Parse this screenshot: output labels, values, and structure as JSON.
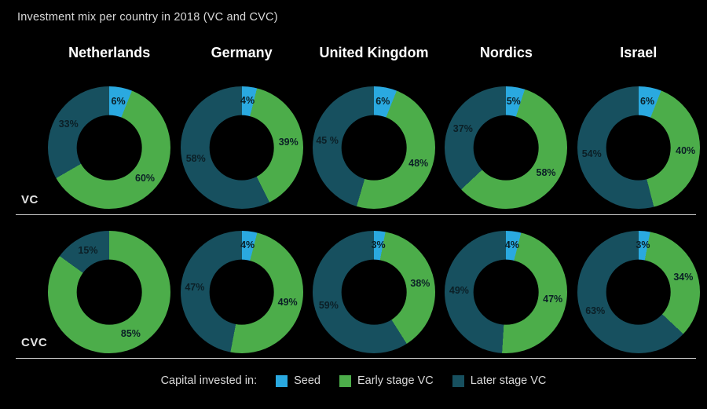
{
  "title": "Investment mix per country in 2018 (VC and CVC)",
  "colors": {
    "seed": "#2aa9e0",
    "early": "#4cad4a",
    "later": "#17505f",
    "background": "#000000",
    "segment_label": "#0b1f26",
    "text": "#d9d9d9",
    "line": "#c9c9c9"
  },
  "legend": {
    "prefix": "Capital invested in:",
    "items": [
      {
        "label": "Seed",
        "color_key": "seed"
      },
      {
        "label": "Early stage VC",
        "color_key": "early"
      },
      {
        "label": "Later stage VC",
        "color_key": "later"
      }
    ]
  },
  "chart_data": {
    "type": "pie",
    "subtype": "donut-grid",
    "title": "Investment mix per country in 2018 (VC and CVC)",
    "legend_position": "bottom",
    "legend": [
      "Seed",
      "Early stage VC",
      "Later stage VC"
    ],
    "columns": [
      "Netherlands",
      "Germany",
      "United Kingdom",
      "Nordics",
      "Israel"
    ],
    "rows": [
      {
        "label": "VC",
        "donuts": [
          {
            "country": "Netherlands",
            "segments": [
              {
                "name": "Seed",
                "color_key": "seed",
                "value": 6,
                "display": "6%"
              },
              {
                "name": "Early stage VC",
                "color_key": "early",
                "value": 60,
                "display": "60%"
              },
              {
                "name": "Later stage VC",
                "color_key": "later",
                "value": 33,
                "display": "33%"
              }
            ]
          },
          {
            "country": "Germany",
            "segments": [
              {
                "name": "Seed",
                "color_key": "seed",
                "value": 4,
                "display": "4%"
              },
              {
                "name": "Early stage VC",
                "color_key": "early",
                "value": 39,
                "display": "39%"
              },
              {
                "name": "Later stage VC",
                "color_key": "later",
                "value": 58,
                "display": "58%"
              }
            ]
          },
          {
            "country": "United Kingdom",
            "segments": [
              {
                "name": "Seed",
                "color_key": "seed",
                "value": 6,
                "display": "6%"
              },
              {
                "name": "Early stage VC",
                "color_key": "early",
                "value": 48,
                "display": "48%"
              },
              {
                "name": "Later stage VC",
                "color_key": "later",
                "value": 45,
                "display": "45 %"
              }
            ]
          },
          {
            "country": "Nordics",
            "segments": [
              {
                "name": "Seed",
                "color_key": "seed",
                "value": 5,
                "display": "5%"
              },
              {
                "name": "Early stage VC",
                "color_key": "early",
                "value": 58,
                "display": "58%"
              },
              {
                "name": "Later stage VC",
                "color_key": "later",
                "value": 37,
                "display": "37%"
              }
            ]
          },
          {
            "country": "Israel",
            "segments": [
              {
                "name": "Seed",
                "color_key": "seed",
                "value": 6,
                "display": "6%"
              },
              {
                "name": "Early stage VC",
                "color_key": "early",
                "value": 40,
                "display": "40%"
              },
              {
                "name": "Later stage VC",
                "color_key": "later",
                "value": 54,
                "display": "54%"
              }
            ]
          }
        ]
      },
      {
        "label": "CVC",
        "donuts": [
          {
            "country": "Netherlands",
            "segments": [
              {
                "name": "Early stage VC",
                "color_key": "early",
                "value": 85,
                "display": "85%"
              },
              {
                "name": "Later stage VC",
                "color_key": "later",
                "value": 15,
                "display": "15%"
              }
            ]
          },
          {
            "country": "Germany",
            "segments": [
              {
                "name": "Seed",
                "color_key": "seed",
                "value": 4,
                "display": "4%"
              },
              {
                "name": "Early stage VC",
                "color_key": "early",
                "value": 49,
                "display": "49%"
              },
              {
                "name": "Later stage VC",
                "color_key": "later",
                "value": 47,
                "display": "47%"
              }
            ]
          },
          {
            "country": "United Kingdom",
            "segments": [
              {
                "name": "Seed",
                "color_key": "seed",
                "value": 3,
                "display": "3%"
              },
              {
                "name": "Early stage VC",
                "color_key": "early",
                "value": 38,
                "display": "38%"
              },
              {
                "name": "Later stage VC",
                "color_key": "later",
                "value": 59,
                "display": "59%"
              }
            ]
          },
          {
            "country": "Nordics",
            "segments": [
              {
                "name": "Seed",
                "color_key": "seed",
                "value": 4,
                "display": "4%"
              },
              {
                "name": "Early stage VC",
                "color_key": "early",
                "value": 47,
                "display": "47%"
              },
              {
                "name": "Later stage VC",
                "color_key": "later",
                "value": 49,
                "display": "49%"
              }
            ]
          },
          {
            "country": "Israel",
            "segments": [
              {
                "name": "Seed",
                "color_key": "seed",
                "value": 3,
                "display": "3%"
              },
              {
                "name": "Early stage VC",
                "color_key": "early",
                "value": 34,
                "display": "34%"
              },
              {
                "name": "Later stage VC",
                "color_key": "later",
                "value": 63,
                "display": "63%"
              }
            ]
          }
        ]
      }
    ]
  }
}
